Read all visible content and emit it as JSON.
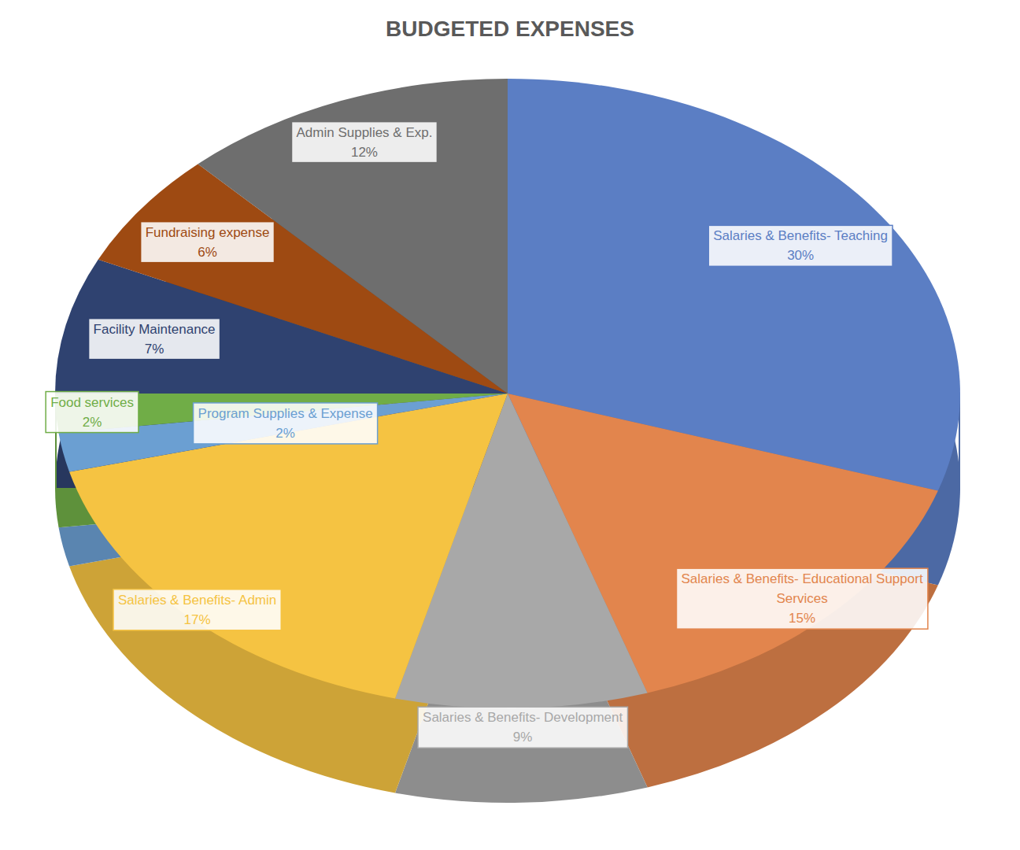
{
  "chart_data": {
    "type": "pie",
    "title": "BUDGETED EXPENSES",
    "categories": [
      "Salaries & Benefits- Teaching",
      "Salaries & Benefits- Educational Support Services",
      "Salaries & Benefits- Development",
      "Salaries & Benefits- Admin",
      "Program Supplies & Expense",
      "Food services",
      "Facility Maintenance",
      "Fundraising expense",
      "Admin Supplies & Exp."
    ],
    "values": [
      30,
      15,
      9,
      17,
      2,
      2,
      7,
      6,
      12
    ],
    "value_labels": [
      "30%",
      "15%",
      "9%",
      "17%",
      "2%",
      "2%",
      "7%",
      "6%",
      "12%"
    ],
    "colors": [
      "#5b7ec4",
      "#e2854d",
      "#a8a8a8",
      "#f5c342",
      "#6b9fd2",
      "#70ad47",
      "#2f4270",
      "#9e4a12",
      "#6e6e6e"
    ],
    "data_labels": true
  }
}
